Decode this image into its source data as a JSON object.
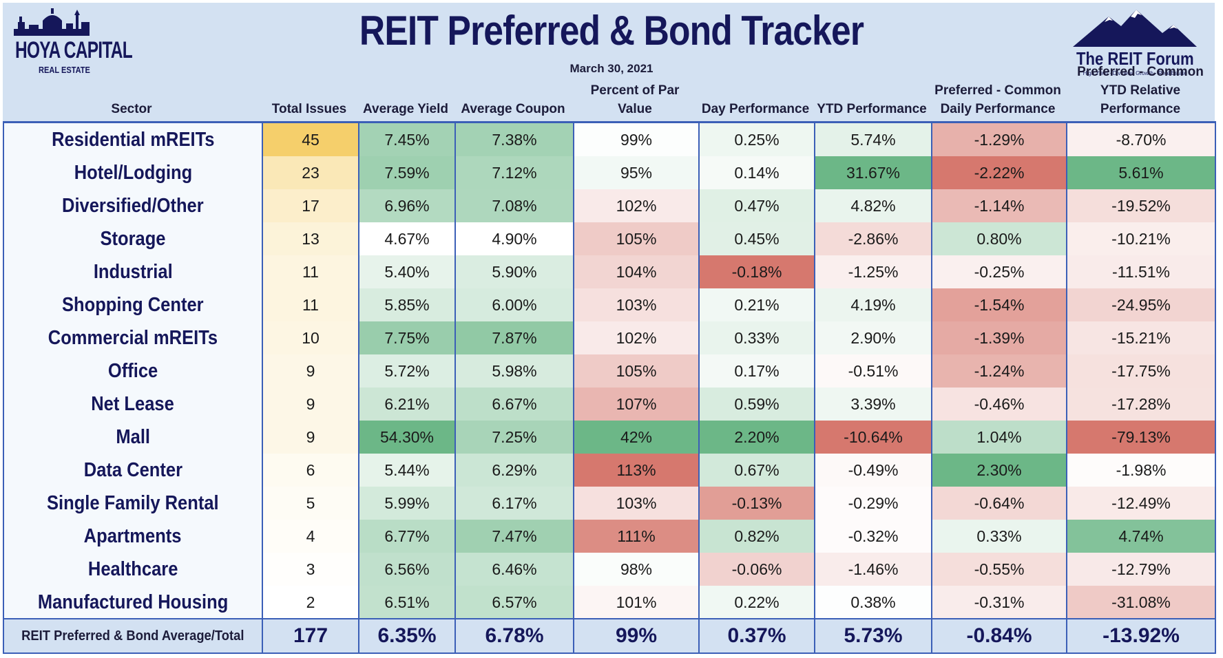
{
  "title": "REIT Preferred & Bond Tracker",
  "date": "March 30, 2021",
  "logo_left": {
    "line1": "HOYA CAPITAL",
    "line2": "REAL ESTATE"
  },
  "logo_right": {
    "brand": "The REIT Forum",
    "tagline": "High Yield · Dividend Growth · Real Estate"
  },
  "columns": [
    {
      "key": "sector",
      "label": "Sector"
    },
    {
      "key": "issues",
      "label": "Total Issues"
    },
    {
      "key": "yield",
      "label": "Average Yield"
    },
    {
      "key": "coupon",
      "label": "Average Coupon"
    },
    {
      "key": "par",
      "label": "Percent of Par Value"
    },
    {
      "key": "day",
      "label": "Day Performance"
    },
    {
      "key": "ytd",
      "label": "YTD Performance"
    },
    {
      "key": "pcdaily",
      "label": "Preferred - Common Daily Performance"
    },
    {
      "key": "pcytd",
      "label": "Preferred - Common YTD Relative Performance"
    }
  ],
  "chart_data": {
    "type": "table",
    "title": "REIT Preferred & Bond Tracker",
    "rows": [
      {
        "sector": "Residential mREITs",
        "issues": "45",
        "yield": "7.45%",
        "coupon": "7.38%",
        "par": "99%",
        "day": "0.25%",
        "ytd": "5.74%",
        "pcdaily": "-1.29%",
        "pcytd": "-8.70%"
      },
      {
        "sector": "Hotel/Lodging",
        "issues": "23",
        "yield": "7.59%",
        "coupon": "7.12%",
        "par": "95%",
        "day": "0.14%",
        "ytd": "31.67%",
        "pcdaily": "-2.22%",
        "pcytd": "5.61%"
      },
      {
        "sector": "Diversified/Other",
        "issues": "17",
        "yield": "6.96%",
        "coupon": "7.08%",
        "par": "102%",
        "day": "0.47%",
        "ytd": "4.82%",
        "pcdaily": "-1.14%",
        "pcytd": "-19.52%"
      },
      {
        "sector": "Storage",
        "issues": "13",
        "yield": "4.67%",
        "coupon": "4.90%",
        "par": "105%",
        "day": "0.45%",
        "ytd": "-2.86%",
        "pcdaily": "0.80%",
        "pcytd": "-10.21%"
      },
      {
        "sector": "Industrial",
        "issues": "11",
        "yield": "5.40%",
        "coupon": "5.90%",
        "par": "104%",
        "day": "-0.18%",
        "ytd": "-1.25%",
        "pcdaily": "-0.25%",
        "pcytd": "-11.51%"
      },
      {
        "sector": "Shopping Center",
        "issues": "11",
        "yield": "5.85%",
        "coupon": "6.00%",
        "par": "103%",
        "day": "0.21%",
        "ytd": "4.19%",
        "pcdaily": "-1.54%",
        "pcytd": "-24.95%"
      },
      {
        "sector": "Commercial mREITs",
        "issues": "10",
        "yield": "7.75%",
        "coupon": "7.87%",
        "par": "102%",
        "day": "0.33%",
        "ytd": "2.90%",
        "pcdaily": "-1.39%",
        "pcytd": "-15.21%"
      },
      {
        "sector": "Office",
        "issues": "9",
        "yield": "5.72%",
        "coupon": "5.98%",
        "par": "105%",
        "day": "0.17%",
        "ytd": "-0.51%",
        "pcdaily": "-1.24%",
        "pcytd": "-17.75%"
      },
      {
        "sector": "Net Lease",
        "issues": "9",
        "yield": "6.21%",
        "coupon": "6.67%",
        "par": "107%",
        "day": "0.59%",
        "ytd": "3.39%",
        "pcdaily": "-0.46%",
        "pcytd": "-17.28%"
      },
      {
        "sector": "Mall",
        "issues": "9",
        "yield": "54.30%",
        "coupon": "7.25%",
        "par": "42%",
        "day": "2.20%",
        "ytd": "-10.64%",
        "pcdaily": "1.04%",
        "pcytd": "-79.13%"
      },
      {
        "sector": "Data Center",
        "issues": "6",
        "yield": "5.44%",
        "coupon": "6.29%",
        "par": "113%",
        "day": "0.67%",
        "ytd": "-0.49%",
        "pcdaily": "2.30%",
        "pcytd": "-1.98%"
      },
      {
        "sector": "Single Family Rental",
        "issues": "5",
        "yield": "5.99%",
        "coupon": "6.17%",
        "par": "103%",
        "day": "-0.13%",
        "ytd": "-0.29%",
        "pcdaily": "-0.64%",
        "pcytd": "-12.49%"
      },
      {
        "sector": "Apartments",
        "issues": "4",
        "yield": "6.77%",
        "coupon": "7.47%",
        "par": "111%",
        "day": "0.82%",
        "ytd": "-0.32%",
        "pcdaily": "0.33%",
        "pcytd": "4.74%"
      },
      {
        "sector": "Healthcare",
        "issues": "3",
        "yield": "6.56%",
        "coupon": "6.46%",
        "par": "98%",
        "day": "-0.06%",
        "ytd": "-1.46%",
        "pcdaily": "-0.55%",
        "pcytd": "-12.79%"
      },
      {
        "sector": "Manufactured Housing",
        "issues": "2",
        "yield": "6.51%",
        "coupon": "6.57%",
        "par": "101%",
        "day": "0.22%",
        "ytd": "0.38%",
        "pcdaily": "-0.31%",
        "pcytd": "-31.08%"
      }
    ],
    "totals": {
      "sector": "REIT Preferred & Bond Average/Total",
      "issues": "177",
      "yield": "6.35%",
      "coupon": "6.78%",
      "par": "99%",
      "day": "0.37%",
      "ytd": "5.73%",
      "pcdaily": "-0.84%",
      "pcytd": "-13.92%"
    }
  },
  "colors": {
    "background": "#d3e1f2",
    "navy": "#15175a",
    "grid": "#3b5fb7",
    "yellow": "#f5cf6b",
    "green": "#6cb787",
    "red": "#d6786e",
    "white": "#ffffff"
  },
  "color_scales": {
    "issues": "white-to-yellow (higher = more yellow)",
    "yield": "white-to-green (higher = greener)",
    "coupon": "white-to-green (higher = greener)",
    "par": "green (low) to white to red (high)",
    "day": "red (low) to white to green (high)",
    "ytd": "red (low) to white to green (high)",
    "pcdaily": "red (low) to white to green (high)",
    "pcytd": "red (low) to white to green (high)"
  }
}
